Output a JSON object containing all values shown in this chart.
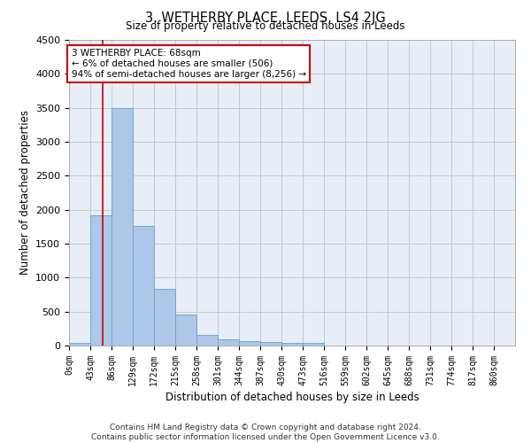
{
  "title": "3, WETHERBY PLACE, LEEDS, LS4 2JG",
  "subtitle": "Size of property relative to detached houses in Leeds",
  "xlabel": "Distribution of detached houses by size in Leeds",
  "ylabel": "Number of detached properties",
  "categories": [
    "0sqm",
    "43sqm",
    "86sqm",
    "129sqm",
    "172sqm",
    "215sqm",
    "258sqm",
    "301sqm",
    "344sqm",
    "387sqm",
    "430sqm",
    "473sqm",
    "516sqm",
    "559sqm",
    "602sqm",
    "645sqm",
    "688sqm",
    "731sqm",
    "774sqm",
    "817sqm",
    "860sqm"
  ],
  "bar_values": [
    40,
    1920,
    3490,
    1760,
    840,
    460,
    155,
    95,
    60,
    55,
    35,
    35,
    0,
    0,
    0,
    0,
    0,
    0,
    0,
    0,
    0
  ],
  "bar_color": "#aec6e8",
  "bar_edge_color": "#6aaad4",
  "grid_color": "#c8c8c8",
  "background_color": "#e8eef8",
  "annotation_text": "3 WETHERBY PLACE: 68sqm\n← 6% of detached houses are smaller (506)\n94% of semi-detached houses are larger (8,256) →",
  "annotation_box_color": "#ffffff",
  "annotation_box_edge_color": "#cc0000",
  "vline_x": 68,
  "vline_color": "#cc0000",
  "ylim": [
    0,
    4500
  ],
  "yticks": [
    0,
    500,
    1000,
    1500,
    2000,
    2500,
    3000,
    3500,
    4000,
    4500
  ],
  "footer_line1": "Contains HM Land Registry data © Crown copyright and database right 2024.",
  "footer_line2": "Contains public sector information licensed under the Open Government Licence v3.0.",
  "bin_width": 43,
  "n_bins": 21
}
